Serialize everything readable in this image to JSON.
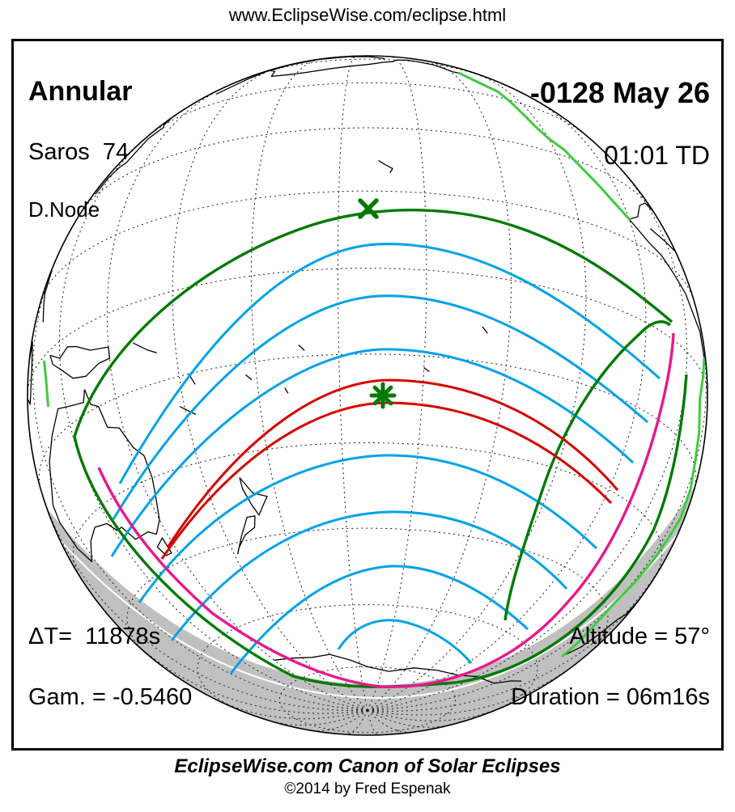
{
  "header": {
    "url": "www.EclipseWise.com/eclipse.html"
  },
  "panel": {
    "eclipse_type": "Annular",
    "saros": "Saros  74",
    "node": "D.Node",
    "date": "-0128 May 26",
    "time": "01:01 TD",
    "delta_t": "ΔT=  11878s",
    "gamma": "Gam. = -0.5460",
    "altitude": "Altitude = 57°",
    "duration": "Duration = 06m16s"
  },
  "footer": {
    "title": "EclipseWise.com Canon of Solar Eclipses",
    "copyright": "©2014 by Fred Espenak"
  },
  "map": {
    "colors": {
      "ocean": "#ffffff",
      "night_shade": "#c0c0c0",
      "graticule": "#1a1a1a",
      "coastline": "#000000",
      "coastline_sunlit": "#3ecc3e",
      "penumbra_limit": "#007a00",
      "max_eclipse_curves": "#00a2e8",
      "rise_set_curve": "#e8188c",
      "annular_path": "#d50000",
      "terminator_line": "#ffffff",
      "limb": "#000000"
    },
    "markers": {
      "x_symbol": "X",
      "star_symbol": "✳",
      "color": "#007a00"
    }
  }
}
